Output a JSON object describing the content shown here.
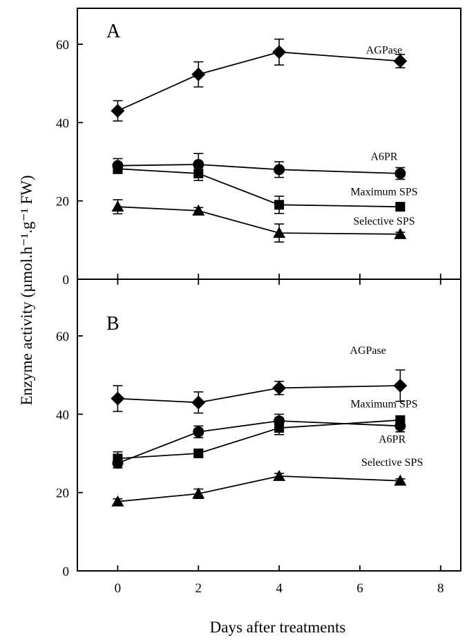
{
  "chart_data": {
    "type": "line",
    "ylabel": "Enzyme activity (µmol.h⁻¹.g⁻¹ FW)",
    "xlabel": "Days after treatments",
    "xlim": [
      -1,
      8.5
    ],
    "xticks": [
      0,
      2,
      4,
      6,
      8
    ],
    "grid": false,
    "panels": [
      {
        "label": "A",
        "ylim": [
          0,
          70
        ],
        "yticks": [
          0,
          20,
          40,
          60
        ],
        "series": [
          {
            "name": "AGPase",
            "marker": "diamond",
            "x": [
              0,
              2,
              4,
              7
            ],
            "y": [
              43,
              52.3,
              58,
              55.7
            ],
            "err": [
              2.6,
              3.2,
              3.3,
              1.7
            ],
            "label_at": [
              6.6,
              57.6
            ]
          },
          {
            "name": "A6PR",
            "marker": "circle",
            "x": [
              0,
              2,
              4,
              7
            ],
            "y": [
              29,
              29.3,
              28,
              27
            ],
            "err": [
              1.8,
              2.8,
              2,
              1.5
            ],
            "label_at": [
              6.6,
              30.4
            ]
          },
          {
            "name": "Maximum SPS",
            "marker": "square",
            "x": [
              0,
              2,
              4,
              7
            ],
            "y": [
              28.2,
              27,
              19,
              18.5
            ],
            "err": [
              1.2,
              1.8,
              2.2,
              0.8
            ],
            "label_at": [
              6.6,
              21.4
            ]
          },
          {
            "name": "Selective SPS",
            "marker": "triangle",
            "x": [
              0,
              2,
              4,
              7
            ],
            "y": [
              18.5,
              17.5,
              11.8,
              11.5
            ],
            "err": [
              1.8,
              0.8,
              2.3,
              0.5
            ],
            "label_at": [
              6.6,
              13.9
            ]
          }
        ]
      },
      {
        "label": "B",
        "ylim": [
          0,
          70
        ],
        "yticks": [
          0,
          20,
          40,
          60
        ],
        "series": [
          {
            "name": "AGPase",
            "marker": "diamond",
            "x": [
              0,
              2,
              4,
              7
            ],
            "y": [
              44,
              43,
              46.7,
              47.3
            ],
            "err": [
              3.3,
              2.7,
              1.7,
              4
            ],
            "label_at": [
              6.2,
              55.4
            ]
          },
          {
            "name": "Maximum SPS",
            "marker": "square",
            "x": [
              0,
              2,
              4,
              7
            ],
            "y": [
              28.7,
              30,
              36.5,
              38.5
            ],
            "err": [
              1.7,
              1,
              1.7,
              1
            ],
            "label_at": [
              6.6,
              41.7
            ]
          },
          {
            "name": "A6PR",
            "marker": "circle",
            "x": [
              0,
              2,
              4,
              7
            ],
            "y": [
              27.5,
              35.5,
              38.3,
              37
            ],
            "err": [
              1.2,
              1.5,
              1.7,
              1.5
            ],
            "label_at": [
              6.8,
              32.7
            ]
          },
          {
            "name": "Selective SPS",
            "marker": "triangle",
            "x": [
              0,
              2,
              4,
              7
            ],
            "y": [
              17.7,
              19.7,
              24.2,
              23
            ],
            "err": [
              0.7,
              1.2,
              0.7,
              0.5
            ],
            "label_at": [
              6.8,
              26.8
            ]
          }
        ]
      }
    ]
  }
}
